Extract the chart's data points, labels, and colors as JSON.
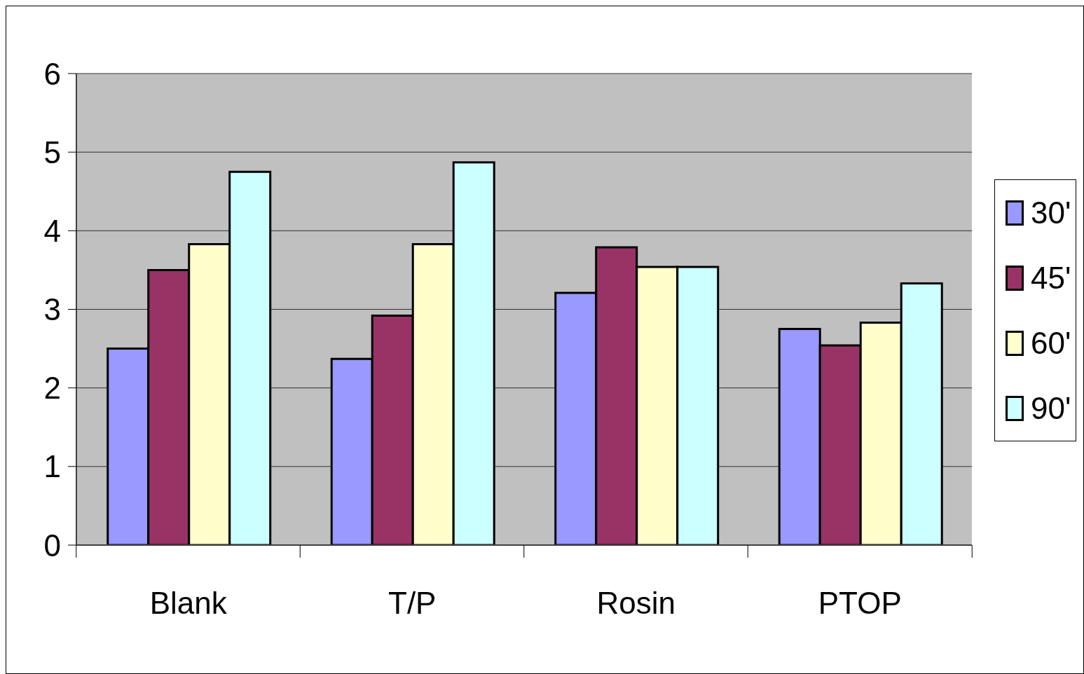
{
  "chart_data": {
    "type": "bar",
    "categories": [
      "Blank",
      "T/P",
      "Rosin",
      "PTOP"
    ],
    "series": [
      {
        "name": "30'",
        "color": "#9999ff",
        "values": [
          2.5,
          2.37,
          3.21,
          2.75
        ]
      },
      {
        "name": "45'",
        "color": "#993366",
        "values": [
          3.5,
          2.92,
          3.79,
          2.54
        ]
      },
      {
        "name": "60'",
        "color": "#ffffcc",
        "values": [
          3.83,
          3.83,
          3.54,
          2.83
        ]
      },
      {
        "name": "90'",
        "color": "#ccffff",
        "values": [
          4.75,
          4.87,
          3.54,
          3.33
        ]
      }
    ],
    "ylim": [
      0,
      6
    ],
    "yticks": [
      0,
      1,
      2,
      3,
      4,
      5,
      6
    ],
    "grid": "y",
    "legend": "right"
  }
}
